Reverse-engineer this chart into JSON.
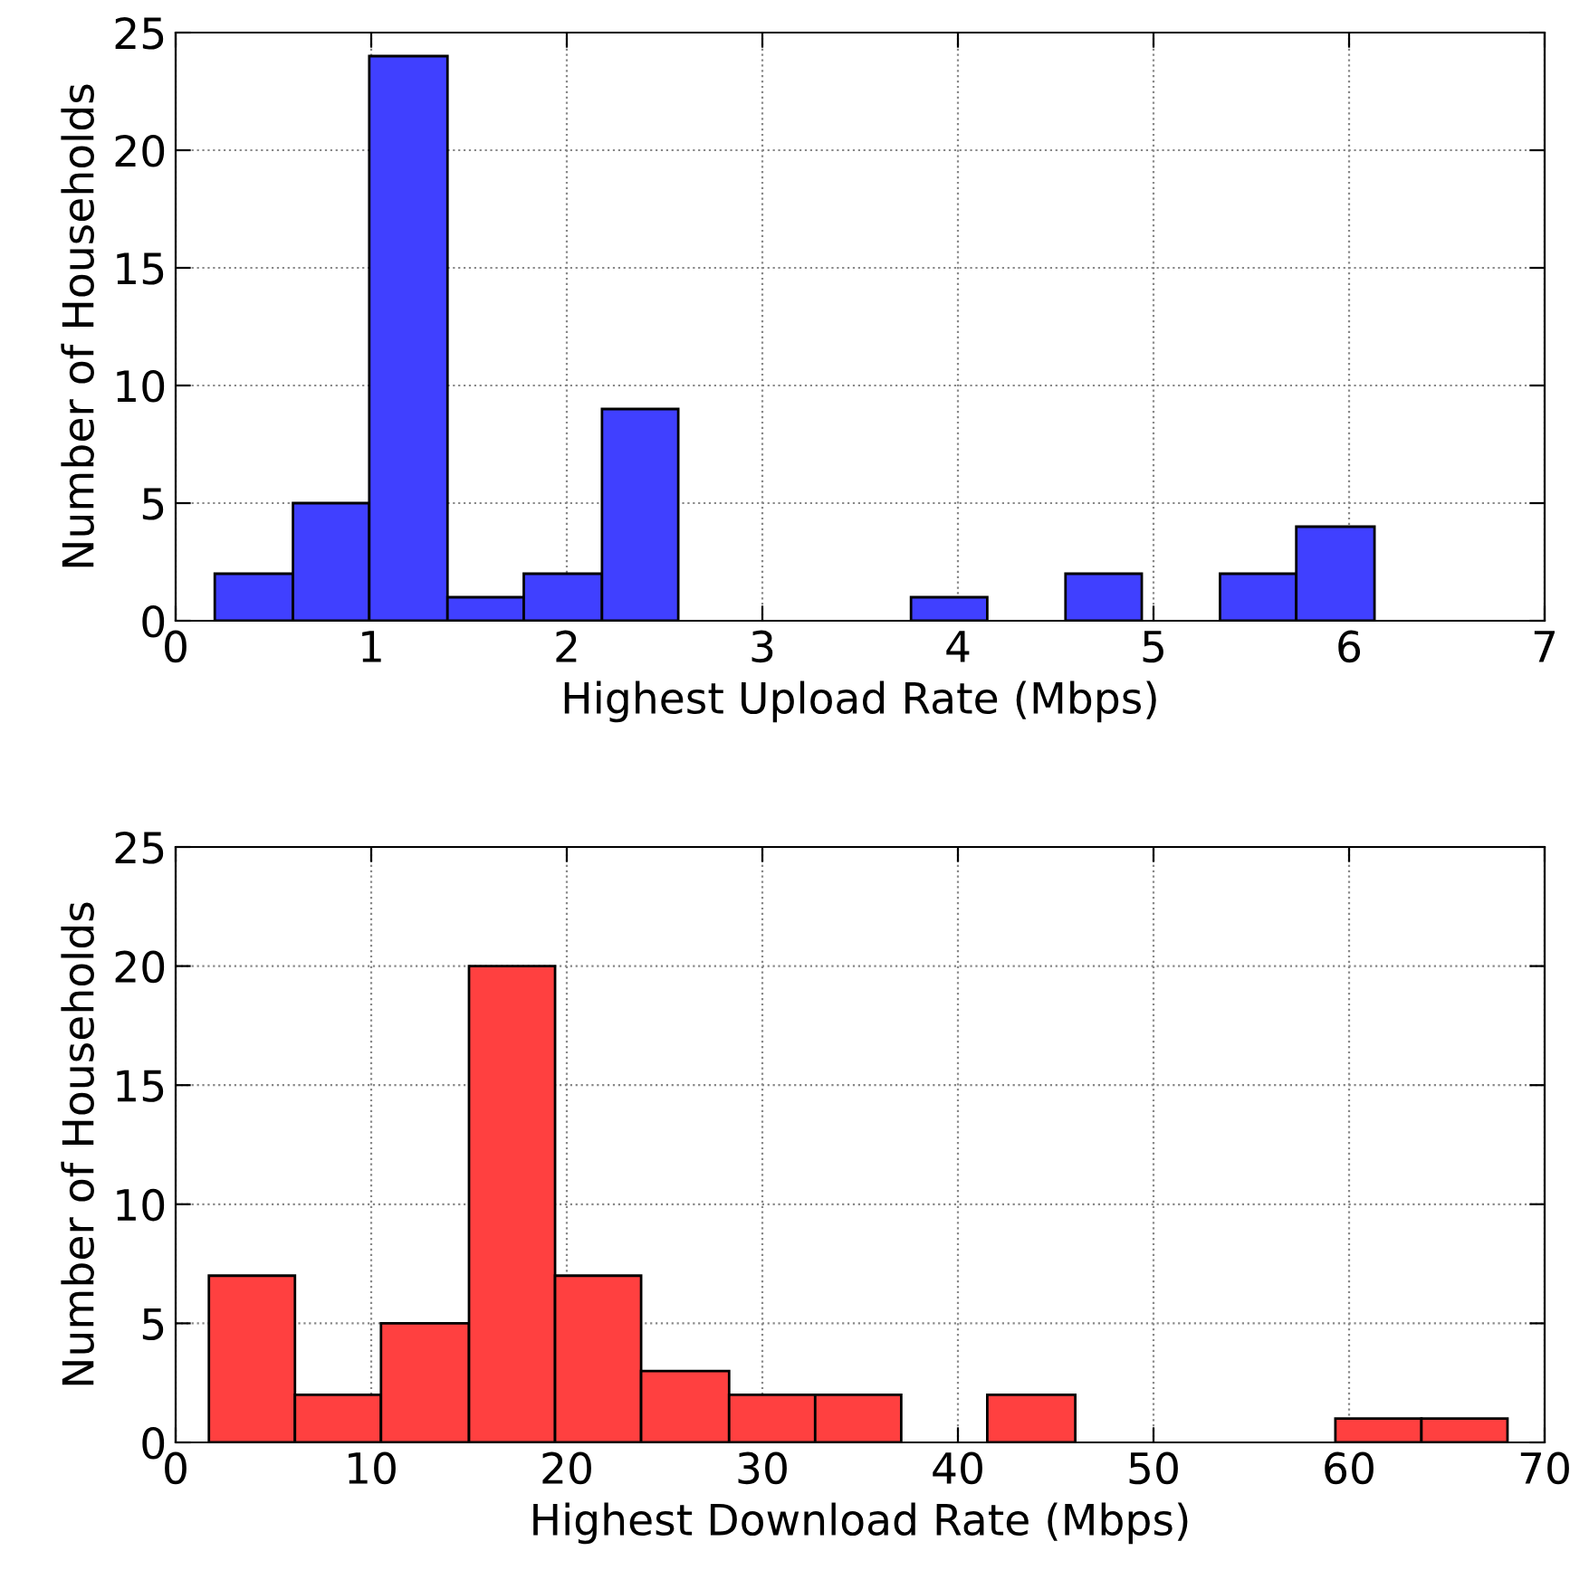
{
  "chart_data": [
    {
      "type": "histogram",
      "xlabel": "Highest Upload Rate (Mbps)",
      "ylabel": "Number of Households",
      "bins": [
        0.2,
        0.6,
        0.99,
        1.39,
        1.78,
        2.18,
        2.57,
        3.76,
        4.15,
        4.55,
        4.94,
        5.34,
        5.73,
        6.13
      ],
      "values": [
        2,
        5,
        24,
        1,
        2,
        9,
        0,
        1,
        0,
        2,
        0,
        2,
        4
      ],
      "color": "#4040ff",
      "xlim": [
        0,
        7
      ],
      "xticks": [
        0,
        1,
        2,
        3,
        4,
        5,
        6,
        7
      ],
      "ylim": [
        0,
        25
      ],
      "yticks": [
        0,
        5,
        10,
        15,
        20,
        25
      ],
      "grid": true,
      "line_style": "dotted"
    },
    {
      "type": "histogram",
      "xlabel": "Highest Download Rate (Mbps)",
      "ylabel": "Number of Households",
      "bins": [
        1.7,
        6.1,
        10.5,
        15.0,
        19.4,
        23.8,
        28.3,
        32.7,
        37.1,
        41.5,
        46.0,
        59.3,
        63.7,
        68.1
      ],
      "values": [
        7,
        2,
        5,
        20,
        7,
        3,
        2,
        2,
        0,
        2,
        0,
        1,
        1
      ],
      "color": "#ff4040",
      "xlim": [
        0,
        70
      ],
      "xticks": [
        0,
        10,
        20,
        30,
        40,
        50,
        60,
        70
      ],
      "ylim": [
        0,
        25
      ],
      "yticks": [
        0,
        5,
        10,
        15,
        20,
        25
      ],
      "grid": true,
      "line_style": "dotted"
    }
  ]
}
